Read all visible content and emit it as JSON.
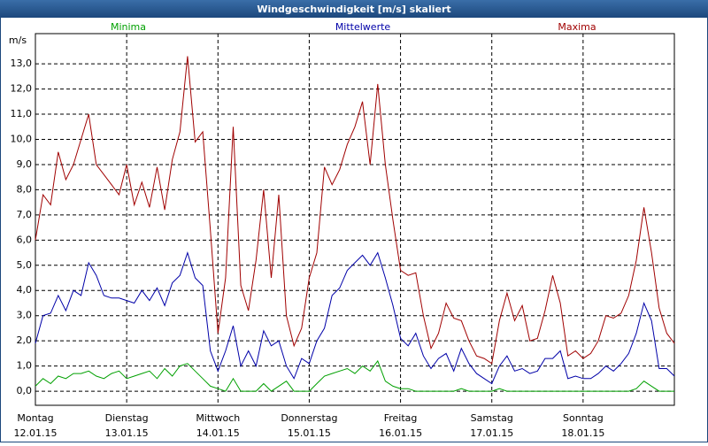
{
  "chart_data": {
    "type": "line",
    "title": "Windgeschwindigkeit [m/s] skaliert",
    "y_unit": "m/s",
    "days": [
      {
        "weekday": "Montag",
        "date": "12.01.15"
      },
      {
        "weekday": "Dienstag",
        "date": "13.01.15"
      },
      {
        "weekday": "Mittwoch",
        "date": "14.01.15"
      },
      {
        "weekday": "Donnerstag",
        "date": "15.01.15"
      },
      {
        "weekday": "Freitag",
        "date": "16.01.15"
      },
      {
        "weekday": "Samstag",
        "date": "17.01.15"
      },
      {
        "weekday": "Sonntag",
        "date": "18.01.15"
      }
    ],
    "ylim": [
      -0.56,
      14.2
    ],
    "yticks": [
      {
        "value": 0,
        "label": "0,0"
      },
      {
        "value": 1,
        "label": "1,0"
      },
      {
        "value": 2,
        "label": "2,0"
      },
      {
        "value": 3,
        "label": "3,0"
      },
      {
        "value": 4,
        "label": "4,0"
      },
      {
        "value": 5,
        "label": "5,0"
      },
      {
        "value": 6,
        "label": "6,0"
      },
      {
        "value": 7,
        "label": "7,0"
      },
      {
        "value": 8,
        "label": "8,0"
      },
      {
        "value": 9,
        "label": "9,0"
      },
      {
        "value": 10,
        "label": "10,0"
      },
      {
        "value": 11,
        "label": "11,0"
      },
      {
        "value": 12,
        "label": "12,0"
      },
      {
        "value": 13,
        "label": "13,0"
      }
    ],
    "grid": true,
    "series": [
      {
        "name": "Minima",
        "color": "#00a000",
        "values": [
          0.2,
          0.5,
          0.3,
          0.6,
          0.5,
          0.7,
          0.7,
          0.8,
          0.6,
          0.5,
          0.7,
          0.8,
          0.5,
          0.6,
          0.7,
          0.8,
          0.5,
          0.9,
          0.6,
          1.0,
          1.1,
          0.8,
          0.5,
          0.2,
          0.1,
          0.0,
          0.5,
          0.0,
          0.0,
          0.0,
          0.3,
          0.0,
          0.2,
          0.4,
          0.0,
          0.0,
          0.0,
          0.3,
          0.6,
          0.7,
          0.8,
          0.9,
          0.7,
          1.0,
          0.8,
          1.2,
          0.4,
          0.2,
          0.1,
          0.1,
          0.0,
          0.0,
          0.0,
          0.0,
          0.0,
          0.0,
          0.1,
          0.0,
          0.0,
          0.0,
          0.0,
          0.1,
          0.0,
          0.0,
          0.0,
          0.0,
          0.0,
          0.0,
          0.0,
          0.0,
          0.0,
          0.0,
          0.0,
          0.0,
          0.0,
          0.0,
          0.0,
          0.0,
          0.0,
          0.1,
          0.4,
          0.2,
          0.0,
          0.0,
          0.0
        ]
      },
      {
        "name": "Mittelwerte",
        "color": "#0000a8",
        "values": [
          1.9,
          3.0,
          3.1,
          3.8,
          3.2,
          4.0,
          3.8,
          5.1,
          4.6,
          3.8,
          3.7,
          3.7,
          3.6,
          3.5,
          4.0,
          3.6,
          4.1,
          3.4,
          4.3,
          4.6,
          5.5,
          4.5,
          4.2,
          1.6,
          0.8,
          1.6,
          2.6,
          1.0,
          1.6,
          1.0,
          2.4,
          1.8,
          2.0,
          1.0,
          0.5,
          1.3,
          1.1,
          2.0,
          2.5,
          3.8,
          4.1,
          4.8,
          5.1,
          5.4,
          5.0,
          5.5,
          4.5,
          3.4,
          2.1,
          1.8,
          2.3,
          1.4,
          0.9,
          1.3,
          1.5,
          0.8,
          1.7,
          1.1,
          0.7,
          0.5,
          0.3,
          1.0,
          1.4,
          0.8,
          0.9,
          0.7,
          0.8,
          1.3,
          1.3,
          1.6,
          0.5,
          0.6,
          0.5,
          0.5,
          0.7,
          1.0,
          0.8,
          1.1,
          1.5,
          2.3,
          3.5,
          2.8,
          0.9,
          0.9,
          0.6
        ]
      },
      {
        "name": "Maxima",
        "color": "#a00000",
        "values": [
          6.0,
          7.8,
          7.4,
          9.5,
          8.4,
          9.0,
          10.0,
          11.0,
          9.0,
          8.6,
          8.2,
          7.8,
          9.0,
          7.4,
          8.3,
          7.3,
          8.9,
          7.2,
          9.2,
          10.3,
          13.3,
          9.9,
          10.3,
          6.4,
          2.3,
          4.5,
          10.5,
          4.2,
          3.2,
          5.2,
          8.0,
          4.5,
          7.8,
          3.0,
          1.8,
          2.5,
          4.5,
          5.5,
          8.9,
          8.2,
          8.8,
          9.8,
          10.5,
          11.5,
          9.0,
          12.2,
          9.0,
          6.8,
          4.8,
          4.6,
          4.7,
          3.0,
          1.7,
          2.3,
          3.5,
          2.9,
          2.8,
          2.0,
          1.4,
          1.3,
          1.1,
          2.8,
          3.9,
          2.8,
          3.4,
          2.0,
          2.1,
          3.2,
          4.6,
          3.5,
          1.4,
          1.6,
          1.3,
          1.5,
          2.0,
          3.0,
          2.9,
          3.1,
          3.8,
          5.2,
          7.3,
          5.5,
          3.3,
          2.3,
          1.9
        ]
      }
    ]
  }
}
